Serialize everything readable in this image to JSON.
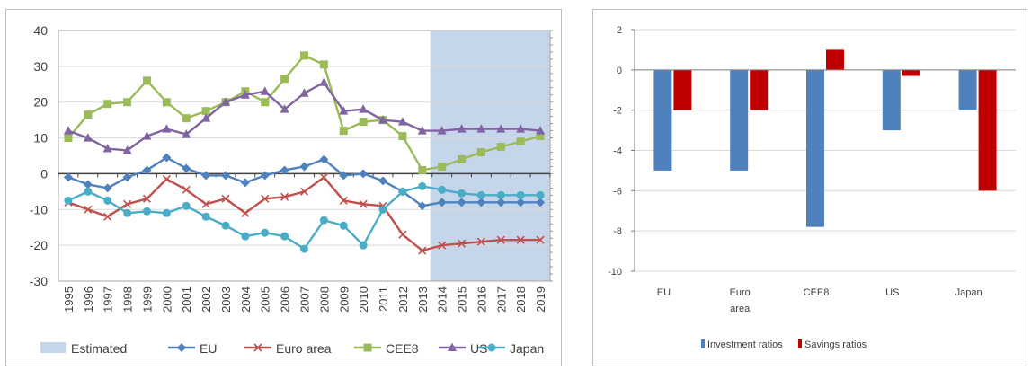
{
  "chart_data": [
    {
      "type": "line",
      "title": "",
      "x": [
        "1995",
        "1996",
        "1997",
        "1998",
        "1999",
        "2000",
        "2001",
        "2002",
        "2003",
        "2004",
        "2005",
        "2006",
        "2007",
        "2008",
        "2009",
        "2010",
        "2011",
        "2012",
        "2013",
        "2014",
        "2015",
        "2016",
        "2017",
        "2018",
        "2019"
      ],
      "ylim": [
        -30,
        40
      ],
      "yticks": [
        "40",
        "30",
        "20",
        "10",
        "0",
        "-10",
        "-20",
        "-30"
      ],
      "grid": true,
      "legend_position": "bottom",
      "shaded_region": {
        "label": "Estimated",
        "from": "2014",
        "to": "2019",
        "color": "#c5d5ea"
      },
      "series": [
        {
          "name": "EU",
          "color": "#4f81bd",
          "marker": "diamond",
          "values": [
            -1,
            -3,
            -4,
            -1,
            1,
            4.5,
            1.5,
            -0.5,
            -0.5,
            -2.5,
            -0.5,
            1,
            2,
            4,
            -0.5,
            0,
            -2,
            -5,
            -9,
            -8,
            -8,
            -8,
            -8,
            -8,
            -8
          ]
        },
        {
          "name": "Euro area",
          "color": "#c0504d",
          "marker": "x",
          "values": [
            -8,
            -10,
            -12,
            -8.5,
            -7,
            -1.5,
            -4.5,
            -8.5,
            -7,
            -11,
            -7,
            -6.5,
            -5,
            -1,
            -7.5,
            -8.5,
            -9,
            -17,
            -21.5,
            -20,
            -19.5,
            -19,
            -18.5,
            -18.5,
            -18.5
          ]
        },
        {
          "name": "CEE8",
          "color": "#9bbb59",
          "marker": "square",
          "values": [
            10,
            16.5,
            19.5,
            20,
            26,
            20,
            15.5,
            17.5,
            20,
            23,
            20,
            26.5,
            33,
            30.5,
            12,
            14.5,
            15,
            10.5,
            1,
            2,
            4,
            6,
            7.5,
            9,
            10.5
          ]
        },
        {
          "name": "US",
          "color": "#8064a2",
          "marker": "triangle",
          "values": [
            12,
            10,
            7,
            6.5,
            10.5,
            12.5,
            11,
            15.5,
            20,
            22,
            23,
            18,
            22.5,
            25.5,
            17.5,
            18,
            15,
            14.5,
            12,
            12,
            12.5,
            12.5,
            12.5,
            12.5,
            12
          ]
        },
        {
          "name": "Japan",
          "color": "#4bacc6",
          "marker": "circle",
          "values": [
            -7.5,
            -5,
            -7.5,
            -11,
            -10.5,
            -11,
            -9,
            -12,
            -14.5,
            -17.5,
            -16.5,
            -17.5,
            -21,
            -13,
            -14.5,
            -20,
            -10,
            -5,
            -3.5,
            -4.5,
            -5.5,
            -6,
            -6,
            -6,
            -6
          ]
        }
      ]
    },
    {
      "type": "bar",
      "title": "",
      "categories": [
        "EU",
        "Euro area",
        "CEE8",
        "US",
        "Japan"
      ],
      "ylim": [
        -10,
        2
      ],
      "yticks": [
        "2",
        "0",
        "-2",
        "-4",
        "-6",
        "-8",
        "-10"
      ],
      "grid": true,
      "legend_position": "bottom",
      "series": [
        {
          "name": "Investment ratios",
          "color": "#4f81bd",
          "values": [
            -5,
            -5,
            -7.8,
            -3,
            -2
          ]
        },
        {
          "name": "Savings ratios",
          "color": "#c00000",
          "values": [
            -2,
            -2,
            1,
            -0.3,
            -6
          ]
        }
      ]
    }
  ]
}
